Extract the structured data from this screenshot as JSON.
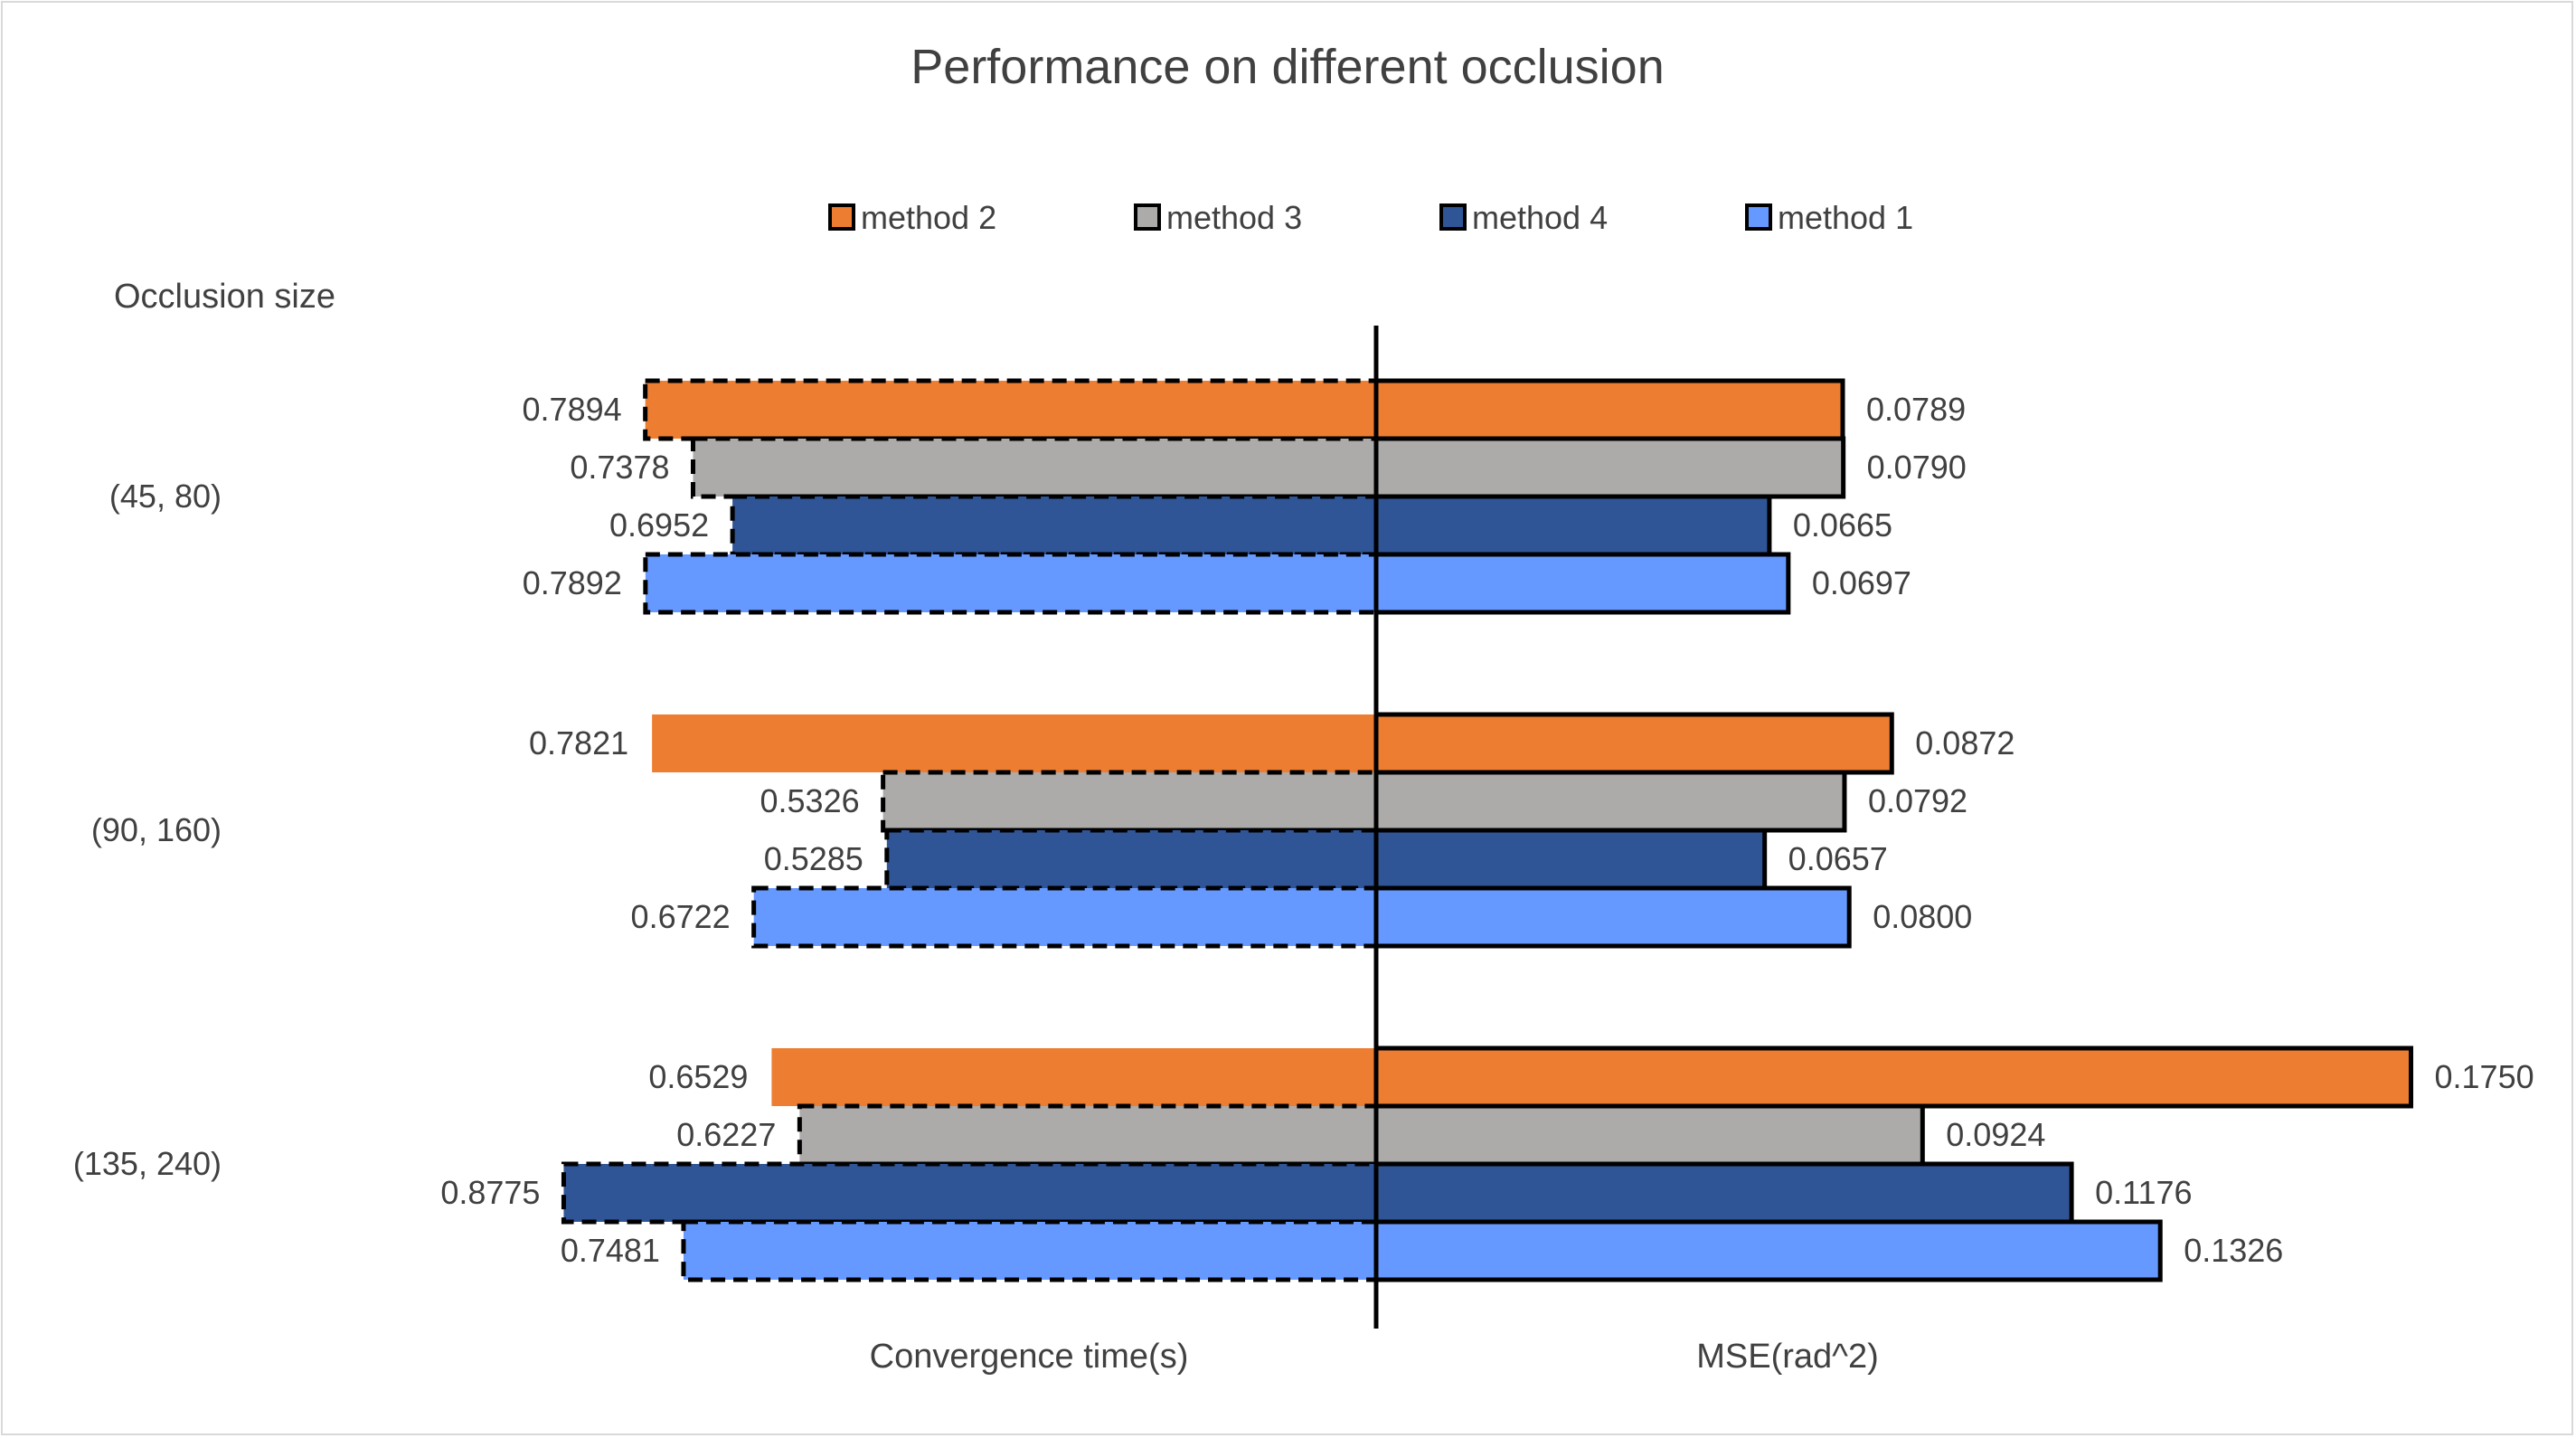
{
  "chart_data": {
    "type": "bar",
    "orientation": "horizontal",
    "layout": "butterfly",
    "title": "Performance on different occlusion",
    "category_axis_title": "Occlusion size",
    "categories": [
      "(45, 80)",
      "(90, 160)",
      "(135, 240)"
    ],
    "left_axis_label": "Convergence time(s)",
    "right_axis_label": "MSE(rad^2)",
    "legend_position": "top",
    "grid": false,
    "series": [
      {
        "name": "method 2",
        "color": "#ED7D31",
        "convergence_time": [
          0.7894,
          0.7821,
          0.6529
        ],
        "mse": [
          0.0789,
          0.0872,
          0.175
        ],
        "convergence_labels": [
          "0.7894",
          "0.7821",
          "0.6529"
        ],
        "mse_labels": [
          "0.0789",
          "0.0872",
          "0.1750"
        ],
        "left_outline": [
          "dashed",
          "none",
          "none"
        ],
        "right_outline": [
          "solid",
          "solid",
          "solid"
        ]
      },
      {
        "name": "method 3",
        "color": "#ADAAAA",
        "convergence_time": [
          0.7378,
          0.5326,
          0.6227
        ],
        "mse": [
          0.079,
          0.0792,
          0.0924
        ],
        "convergence_labels": [
          "0.7378",
          "0.5326",
          "0.6227"
        ],
        "mse_labels": [
          "0.0790",
          "0.0792",
          "0.0924"
        ],
        "left_outline": [
          "dashed",
          "dashed",
          "dashed"
        ],
        "right_outline": [
          "solid",
          "solid",
          "solid"
        ]
      },
      {
        "name": "method 4",
        "color": "#2F5597",
        "convergence_time": [
          0.6952,
          0.5285,
          0.8775
        ],
        "mse": [
          0.0665,
          0.0657,
          0.1176
        ],
        "convergence_labels": [
          "0.6952",
          "0.5285",
          "0.8775"
        ],
        "mse_labels": [
          "0.0665",
          "0.0657",
          "0.1176"
        ],
        "left_outline": [
          "dashed",
          "dashed",
          "dashed"
        ],
        "right_outline": [
          "solid",
          "solid",
          "solid"
        ]
      },
      {
        "name": "method 1",
        "color": "#6699FF",
        "convergence_time": [
          0.7892,
          0.6722,
          0.7481
        ],
        "mse": [
          0.0697,
          0.08,
          0.1326
        ],
        "convergence_labels": [
          "0.7892",
          "0.6722",
          "0.7481"
        ],
        "mse_labels": [
          "0.0697",
          "0.0800",
          "0.1326"
        ],
        "left_outline": [
          "dashed",
          "dashed",
          "dashed"
        ],
        "right_outline": [
          "solid",
          "solid",
          "solid"
        ]
      }
    ]
  }
}
